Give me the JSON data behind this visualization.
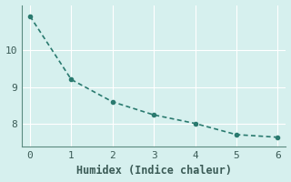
{
  "x": [
    0,
    1,
    2,
    3,
    4,
    5,
    6
  ],
  "y": [
    10.9,
    9.2,
    8.6,
    8.25,
    8.02,
    7.72,
    7.65
  ],
  "line_color": "#2a7a6f",
  "marker": "o",
  "marker_size": 3,
  "line_width": 1.2,
  "xlabel": "Humidex (Indice chaleur)",
  "xlim": [
    -0.2,
    6.2
  ],
  "ylim": [
    7.4,
    11.2
  ],
  "yticks": [
    8,
    9,
    10
  ],
  "xticks": [
    0,
    1,
    2,
    3,
    4,
    5,
    6
  ],
  "bg_color": "#d6f0ee",
  "grid_color": "#ffffff",
  "axes_color": "#5a8a80",
  "tick_color": "#3a5a55",
  "label_fontsize": 8.5,
  "tick_fontsize": 8
}
